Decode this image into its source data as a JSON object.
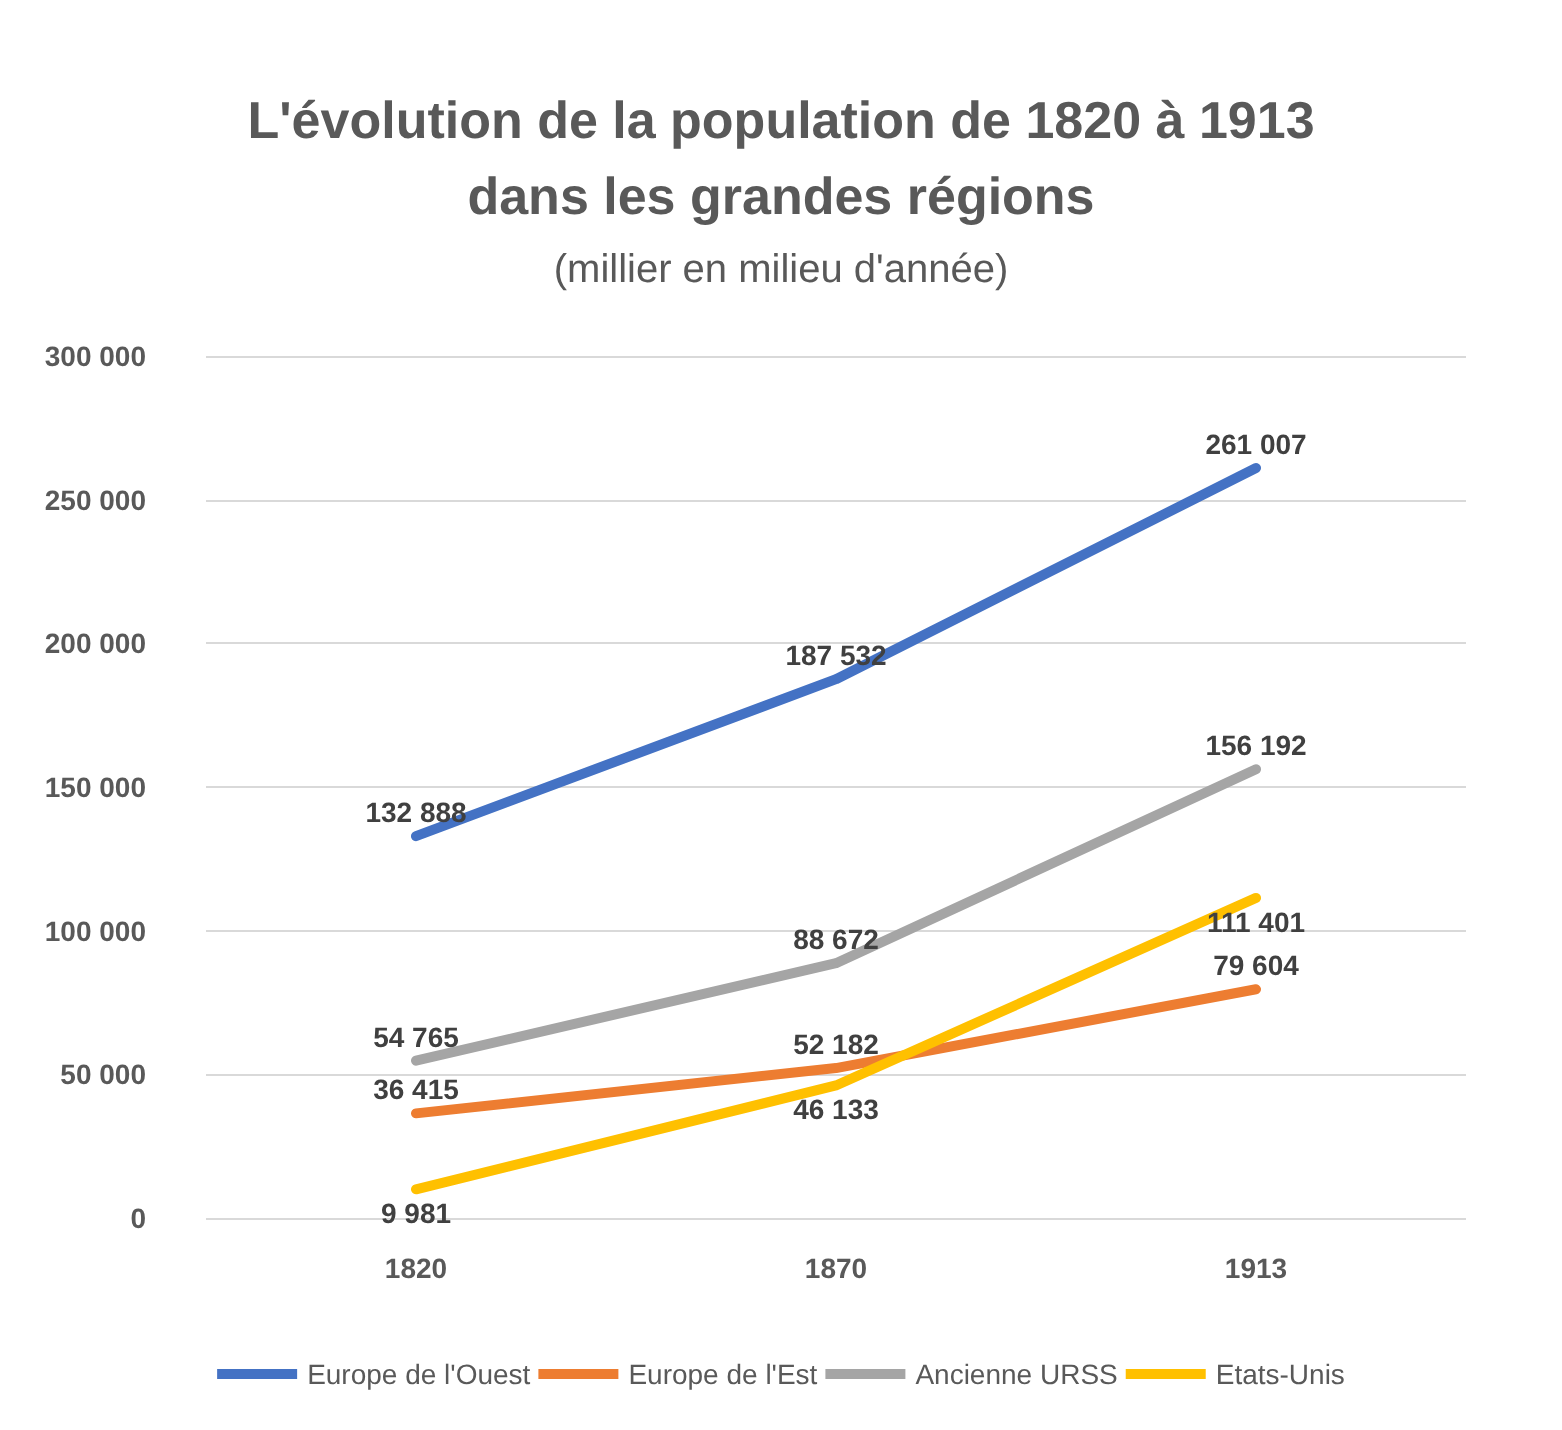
{
  "chart_data": {
    "type": "line",
    "title": "L'évolution de la population de 1820 à 1913\ndans les grandes régions",
    "subtitle": "(millier en milieu d'année)",
    "categories": [
      "1820",
      "1870",
      "1913"
    ],
    "series": [
      {
        "name": "Europe de l'Ouest",
        "color": "#4472c4",
        "values": [
          132888,
          187532,
          261007
        ],
        "value_labels": [
          "132 888",
          "187 532",
          "261 007"
        ]
      },
      {
        "name": "Europe de l'Est",
        "color": "#ed7d31",
        "values": [
          36415,
          52182,
          79604
        ],
        "value_labels": [
          "36 415",
          "52 182",
          "79 604"
        ]
      },
      {
        "name": "Ancienne URSS",
        "color": "#a5a5a5",
        "values": [
          54765,
          88672,
          156192
        ],
        "value_labels": [
          "54 765",
          "88 672",
          "156 192"
        ]
      },
      {
        "name": "Etats-Unis",
        "color": "#ffc000",
        "values": [
          9981,
          46133,
          111401
        ],
        "value_labels": [
          "9 981",
          "46 133",
          "111 401"
        ]
      }
    ],
    "ylim": [
      0,
      300000
    ],
    "yticks": [
      {
        "value": 0,
        "label": "0"
      },
      {
        "value": 50000,
        "label": "50 000"
      },
      {
        "value": 100000,
        "label": "100 000"
      },
      {
        "value": 150000,
        "label": "150 000"
      },
      {
        "value": 200000,
        "label": "200 000"
      },
      {
        "value": 250000,
        "label": "250 000"
      },
      {
        "value": 300000,
        "label": "300 000"
      }
    ],
    "grid": "y",
    "legend": "bottom",
    "marker": "none",
    "line_style": "solid"
  }
}
